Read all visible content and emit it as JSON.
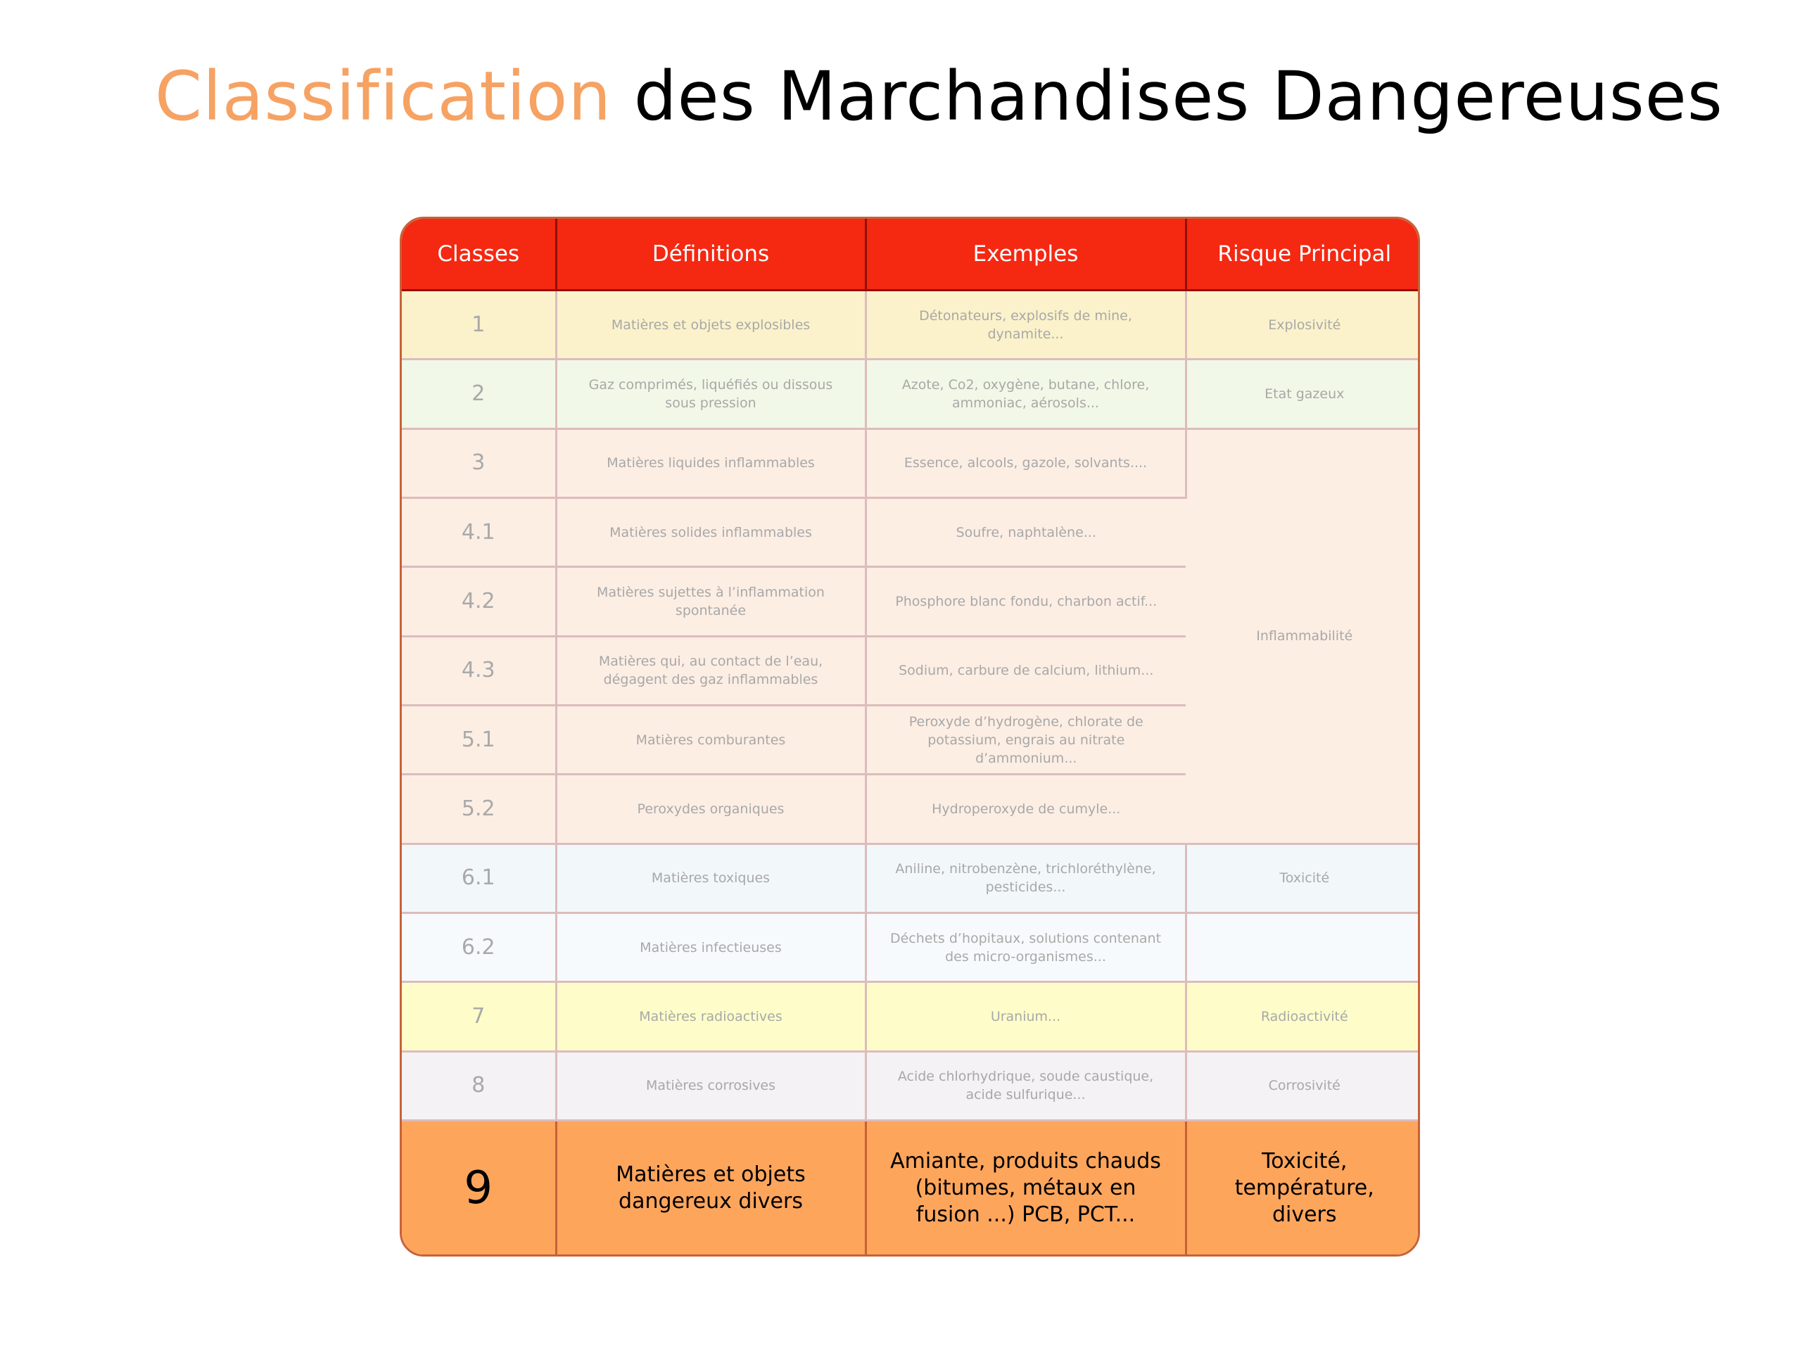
{
  "title": {
    "accent": "Classification",
    "rest": " des Marchandises Dangereuses"
  },
  "colors": {
    "title_accent": "#f6a263",
    "header_bg": "#f52812",
    "highlight_row": "#fea55c"
  },
  "table": {
    "headers": [
      "Classes",
      "Définitions",
      "Exemples",
      "Risque Principal"
    ],
    "rows": [
      {
        "classe": "1",
        "definition": "Matières et objets explosibles",
        "exemples": "Détonateurs, explosifs de mine, dynamite...",
        "risque": "Explosivité"
      },
      {
        "classe": "2",
        "definition": "Gaz comprimés, liquéfiés ou dissous sous pression",
        "exemples": "Azote, Co2, oxygène, butane, chlore, ammoniac, aérosols...",
        "risque": "Etat gazeux"
      },
      {
        "classe": "3",
        "definition": "Matières liquides inflammables",
        "exemples": "Essence, alcools, gazole, solvants....",
        "risque": "Inflammabilité"
      },
      {
        "classe": "4.1",
        "definition": "Matières solides inflammables",
        "exemples": "Soufre, naphtalène..."
      },
      {
        "classe": "4.2",
        "definition": "Matières sujettes à l’inflammation spontanée",
        "exemples": "Phosphore blanc fondu, charbon actif..."
      },
      {
        "classe": "4.3",
        "definition": "Matières qui, au contact de l’eau, dégagent des gaz inflammables",
        "exemples": "Sodium, carbure de calcium, lithium..."
      },
      {
        "classe": "5.1",
        "definition": "Matières comburantes",
        "exemples": "Peroxyde d’hydrogène, chlorate de potassium, engrais au nitrate d’ammonium..."
      },
      {
        "classe": "5.2",
        "definition": "Peroxydes organiques",
        "exemples": "Hydroperoxyde de cumyle..."
      },
      {
        "classe": "6.1",
        "definition": "Matières toxiques",
        "exemples": "Aniline, nitrobenzène, trichloréthylène, pesticides...",
        "risque": "Toxicité"
      },
      {
        "classe": "6.2",
        "definition": "Matières infectieuses",
        "exemples": "Déchets d’hopitaux, solutions contenant des micro-organismes...",
        "risque": ""
      },
      {
        "classe": "7",
        "definition": "Matières radioactives",
        "exemples": "Uranium...",
        "risque": "Radioactivité"
      },
      {
        "classe": "8",
        "definition": "Matières corrosives",
        "exemples": "Acide chlorhydrique, soude caustique, acide sulfurique...",
        "risque": "Corrosivité"
      },
      {
        "classe": "9",
        "definition": "Matières et objets dangereux divers",
        "exemples": "Amiante, produits chauds (bitumes, métaux en fusion ...) PCB, PCT...",
        "risque": "Toxicité, température, divers"
      }
    ]
  }
}
